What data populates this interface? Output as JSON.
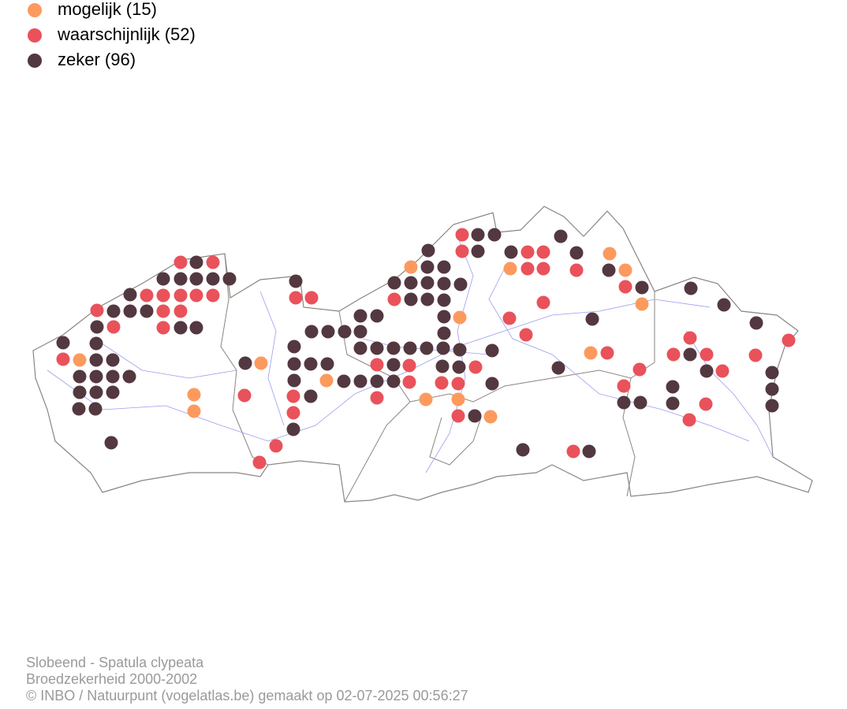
{
  "legend": [
    {
      "label": "mogelijk (15)",
      "color": "#fc9a5e"
    },
    {
      "label": "waarschijnlijk (52)",
      "color": "#e9525a"
    },
    {
      "label": "zeker (96)",
      "color": "#533840"
    }
  ],
  "footer": [
    "Slobeend - Spatula clypeata",
    "Broedzekerheid 2000-2002",
    "© INBO / Natuurpunt (vogelatlas.be) gemaakt op 02-07-2025 00:56:27"
  ]
}
